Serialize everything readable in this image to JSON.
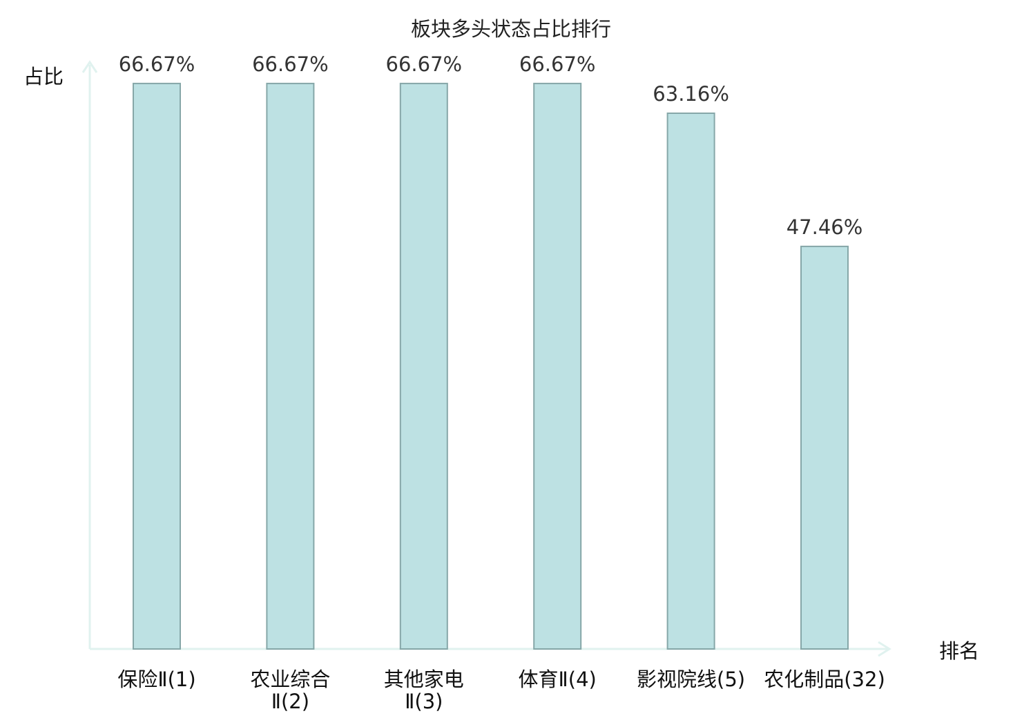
{
  "chart_data": {
    "type": "bar",
    "title": "板块多头状态占比排行",
    "ylabel": "占比",
    "xlabel": "排名",
    "ylim": [
      0,
      70
    ],
    "grid": false,
    "legend": "none",
    "categories": [
      [
        "保险Ⅱ(1)"
      ],
      [
        "农业综合",
        "Ⅱ(2)"
      ],
      [
        "其他家电",
        "Ⅱ(3)"
      ],
      [
        "体育Ⅱ(4)"
      ],
      [
        "影视院线(5)"
      ],
      [
        "农化制品(32)"
      ]
    ],
    "values": [
      66.67,
      66.67,
      66.67,
      66.67,
      63.16,
      47.46
    ],
    "value_labels": [
      "66.67%",
      "66.67%",
      "66.67%",
      "66.67%",
      "63.16%",
      "47.46%"
    ],
    "highlight_index": 5
  },
  "colors": {
    "bar_fill": "#bde1e3",
    "bar_stroke": "#86a7a8",
    "axis": "#e0f2ef",
    "highlight_text": "#e02020",
    "text": "#111111"
  }
}
